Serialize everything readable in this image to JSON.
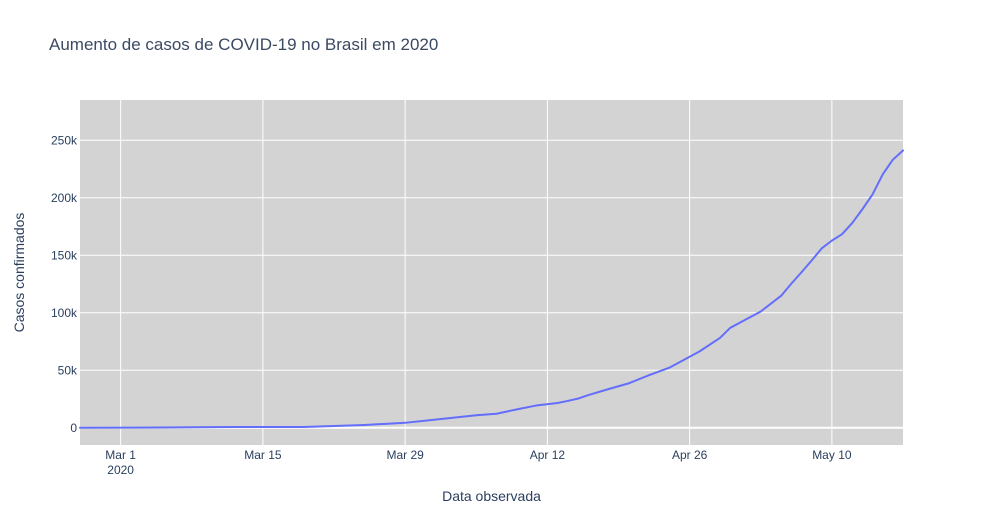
{
  "chart_data": {
    "type": "line",
    "title": "Aumento de casos de COVID-19 no Brasil em 2020",
    "xlabel": "Data observada",
    "ylabel": "Casos confirmados",
    "x_range": [
      "2020-02-26",
      "2020-05-17"
    ],
    "ylim": [
      -15000,
      285000
    ],
    "grid": true,
    "legend": "none",
    "x_ticks": [
      {
        "date": "2020-03-01",
        "label": "Mar 1",
        "sublabel": "2020"
      },
      {
        "date": "2020-03-15",
        "label": "Mar 15",
        "sublabel": ""
      },
      {
        "date": "2020-03-29",
        "label": "Mar 29",
        "sublabel": ""
      },
      {
        "date": "2020-04-12",
        "label": "Apr 12",
        "sublabel": ""
      },
      {
        "date": "2020-04-26",
        "label": "Apr 26",
        "sublabel": ""
      },
      {
        "date": "2020-05-10",
        "label": "May 10",
        "sublabel": ""
      }
    ],
    "y_ticks": [
      {
        "value": 0,
        "label": "0"
      },
      {
        "value": 50000,
        "label": "50k"
      },
      {
        "value": 100000,
        "label": "100k"
      },
      {
        "value": 150000,
        "label": "150k"
      },
      {
        "value": 200000,
        "label": "200k"
      },
      {
        "value": 250000,
        "label": "250k"
      }
    ],
    "colors": {
      "plot_bg": "#d3d3d3",
      "grid": "#ffffff",
      "line": "#636efa",
      "text": "#2a3f5f",
      "title": "#3b4a62"
    },
    "series": [
      {
        "x": [
          "2020-02-26",
          "2020-03-05",
          "2020-03-12",
          "2020-03-19",
          "2020-03-22",
          "2020-03-25",
          "2020-03-29",
          "2020-04-02",
          "2020-04-05",
          "2020-04-07",
          "2020-04-09",
          "2020-04-11",
          "2020-04-13",
          "2020-04-14",
          "2020-04-15",
          "2020-04-16",
          "2020-04-18",
          "2020-04-20",
          "2020-04-22",
          "2020-04-24",
          "2020-04-26",
          "2020-04-27",
          "2020-04-29",
          "2020-04-30",
          "2020-05-01",
          "2020-05-03",
          "2020-05-05",
          "2020-05-06",
          "2020-05-07",
          "2020-05-08",
          "2020-05-09",
          "2020-05-10",
          "2020-05-11",
          "2020-05-12",
          "2020-05-13",
          "2020-05-14",
          "2020-05-15",
          "2020-05-16",
          "2020-05-17"
        ],
        "y": [
          0,
          200,
          600,
          600,
          1500,
          2400,
          4300,
          8000,
          10900,
          12200,
          16000,
          19500,
          21500,
          23300,
          25300,
          28300,
          33600,
          38600,
          45700,
          52200,
          61700,
          66500,
          78200,
          86900,
          91600,
          101100,
          114700,
          125200,
          135100,
          145300,
          156000,
          162700,
          168300,
          178000,
          190000,
          202900,
          220300,
          233100,
          241100
        ]
      }
    ]
  }
}
